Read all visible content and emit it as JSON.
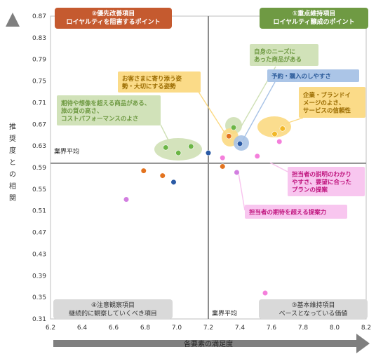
{
  "chart_data": {
    "type": "scatter",
    "xlabel": "各要素の満足度",
    "ylabel": "推奨度との相関",
    "xlim": [
      6.2,
      8.2
    ],
    "ylim": [
      0.31,
      0.87
    ],
    "x_ticks": [
      "6.2",
      "6.4",
      "6.6",
      "6.8",
      "7.0",
      "7.2",
      "7.4",
      "7.6",
      "7.8",
      "8.0",
      "8.2"
    ],
    "y_ticks": [
      "0.87",
      "0.83",
      "0.79",
      "0.75",
      "0.71",
      "0.67",
      "0.63",
      "0.59",
      "0.55",
      "0.51",
      "0.47",
      "0.43",
      "0.39",
      "0.35",
      "0.31"
    ],
    "grid": false,
    "reference_lines": {
      "x_value": 7.2,
      "x_label": "業界平均",
      "y_value": 0.598,
      "y_label": "業界平均"
    },
    "quadrants": [
      {
        "lines": [
          "②優先改善項目",
          "ロイヤルティを阻害するポイント"
        ],
        "color": "#c55a2f"
      },
      {
        "lines": [
          "①重点維持項目",
          "ロイヤルティ醸成のポイント"
        ],
        "color": "#6f9a43"
      },
      {
        "lines": [
          "④注意観察項目",
          "継続的に観察していくべき項目"
        ],
        "color": "#d9d9d9"
      },
      {
        "lines": [
          "③基本維持項目",
          "ベースとなっている価値"
        ],
        "color": "#d9d9d9"
      }
    ],
    "categories": [
      {
        "lines": [
          "自身のニーズに",
          "あった商品がある"
        ],
        "color": "#6f9a43",
        "fill": "#cfe0b5"
      },
      {
        "lines": [
          "予約・購入のしやすさ"
        ],
        "color": "#2a5a99",
        "fill": "#a7c2e6"
      },
      {
        "lines": [
          "お客さまに寄り添う姿",
          "勢・大切にする姿勢"
        ],
        "color": "#9a6b00",
        "fill": "#fbd982"
      },
      {
        "lines": [
          "企業・ブランドイ",
          "メージのよさ、",
          "サービスの信頼性"
        ],
        "color": "#9a6b00",
        "fill": "#fbd982"
      },
      {
        "lines": [
          "期待や想像を超える商品がある、",
          "旅の質の高さ、",
          "コストパフォーマンスのよさ"
        ],
        "color": "#6f9a43",
        "fill": "#cfe0b5"
      },
      {
        "lines": [
          "担当者の説明のわかり",
          "やすさ、要望に合った",
          "プランの提案"
        ],
        "color": "#c0167f",
        "fill": "#f8c3ee"
      },
      {
        "lines": [
          "担当者の期待を超える提案力"
        ],
        "color": "#c0167f",
        "fill": "#f8c3ee"
      }
    ],
    "series": [
      {
        "color": "#e3731f",
        "points": [
          [
            6.79,
            0.584
          ],
          [
            6.91,
            0.575
          ],
          [
            7.29,
            0.592
          ],
          [
            7.33,
            0.648
          ]
        ]
      },
      {
        "color": "#2a5aa5",
        "points": [
          [
            6.98,
            0.563
          ],
          [
            7.2,
            0.617
          ],
          [
            7.4,
            0.634
          ]
        ]
      },
      {
        "color": "#6bb545",
        "points": [
          [
            6.93,
            0.627
          ],
          [
            7.01,
            0.617
          ],
          [
            7.09,
            0.629
          ],
          [
            7.36,
            0.664
          ]
        ]
      },
      {
        "color": "#f2b828",
        "points": [
          [
            7.62,
            0.652
          ],
          [
            7.67,
            0.662
          ]
        ]
      },
      {
        "color": "#d27ee0",
        "points": [
          [
            6.68,
            0.531
          ],
          [
            7.38,
            0.581
          ]
        ]
      },
      {
        "color": "#f47fdb",
        "points": [
          [
            7.29,
            0.608
          ],
          [
            7.51,
            0.611
          ],
          [
            7.65,
            0.638
          ],
          [
            7.56,
            0.358
          ]
        ]
      }
    ]
  }
}
